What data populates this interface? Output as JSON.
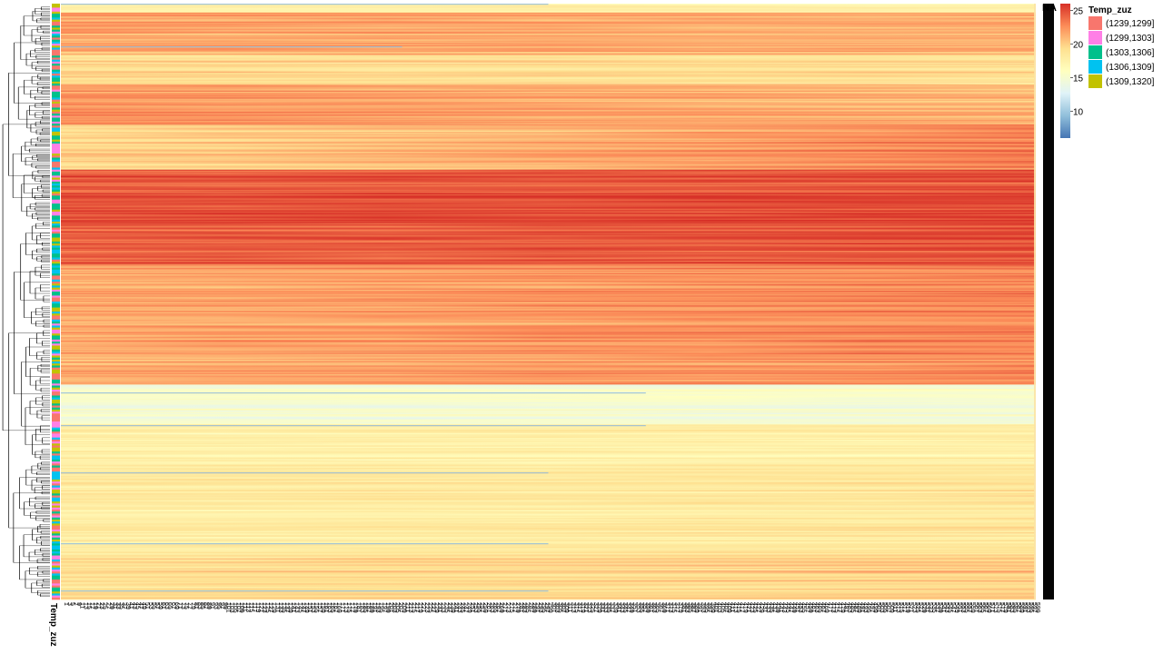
{
  "chart_data": {
    "type": "heatmap",
    "title": "",
    "xlabel": "",
    "ylabel": "",
    "row_annotation": {
      "name": "Temp_zuz",
      "levels": [
        {
          "label": "(1239,1299]",
          "color": "#f8766d"
        },
        {
          "label": "(1299,1303]",
          "color": "#ff7fe6"
        },
        {
          "label": "(1303,1306]",
          "color": "#00c08b"
        },
        {
          "label": "(1306,1309]",
          "color": "#00c2f0"
        },
        {
          "label": "(1309,1320]",
          "color": "#c2c200"
        }
      ]
    },
    "colorbar": {
      "ticks": [
        25,
        20,
        15,
        10
      ],
      "range": [
        6,
        26
      ],
      "na_label": "NA",
      "colors": [
        "#4575b4",
        "#91bfdb",
        "#e0f3f8",
        "#ffffbf",
        "#fee090",
        "#fc8d59",
        "#d73027"
      ]
    },
    "row_blocks": [
      {
        "rows": 9,
        "value_start": 17.0,
        "value_end": 17.0
      },
      {
        "rows": 42,
        "value_start": 21.5,
        "value_end": 21.0
      },
      {
        "rows": 30,
        "value_start": 19.5,
        "value_end": 19.0
      },
      {
        "rows": 40,
        "value_start": 22.5,
        "value_end": 21.0
      },
      {
        "rows": 45,
        "value_start": 19.5,
        "value_end": 23.0
      },
      {
        "rows": 95,
        "value_start": 24.5,
        "value_end": 25.0
      },
      {
        "rows": 120,
        "value_start": 21.5,
        "value_end": 23.0
      },
      {
        "rows": 40,
        "value_start": 15.0,
        "value_end": 15.0
      },
      {
        "rows": 40,
        "value_start": 17.5,
        "value_end": 17.5
      },
      {
        "rows": 90,
        "value_start": 18.0,
        "value_end": 18.5
      },
      {
        "rows": 45,
        "value_start": 19.0,
        "value_end": 20.0
      }
    ],
    "n_columns": 300,
    "column_labels": [
      "1",
      "3",
      "5",
      "7",
      "9",
      "11",
      "13",
      "15",
      "17",
      "19",
      "21",
      "23",
      "25",
      "27",
      "29",
      "31",
      "33",
      "35",
      "37",
      "39",
      "41",
      "43",
      "45",
      "47",
      "49",
      "51",
      "53",
      "55",
      "57",
      "59",
      "61",
      "63",
      "65",
      "67",
      "69",
      "71",
      "73",
      "75",
      "77",
      "79",
      "81",
      "83",
      "85",
      "87",
      "89",
      "91",
      "93",
      "95",
      "97",
      "99",
      "101",
      "103",
      "105",
      "107",
      "109",
      "111",
      "113",
      "115",
      "117",
      "119",
      "121",
      "123",
      "125",
      "127",
      "129",
      "131",
      "133",
      "135",
      "137",
      "139",
      "141",
      "143",
      "145",
      "147",
      "149",
      "151",
      "153",
      "155",
      "157",
      "159",
      "161",
      "163",
      "165",
      "167",
      "169",
      "171",
      "173",
      "175",
      "177",
      "179",
      "181",
      "183",
      "185",
      "187",
      "189",
      "191",
      "193",
      "195",
      "197",
      "199",
      "201",
      "203",
      "205",
      "207",
      "209",
      "211",
      "213",
      "215",
      "217",
      "219",
      "221",
      "223",
      "225",
      "227",
      "229",
      "231",
      "233",
      "235",
      "237",
      "239",
      "241",
      "243",
      "245",
      "247",
      "249",
      "251",
      "253",
      "255",
      "257",
      "259",
      "261",
      "263",
      "265",
      "267",
      "269",
      "271",
      "273",
      "275",
      "277",
      "279",
      "281",
      "283",
      "285",
      "287",
      "289",
      "291",
      "293",
      "295",
      "297",
      "299",
      "301",
      "303",
      "305",
      "307",
      "309",
      "311",
      "313",
      "315",
      "317",
      "319",
      "321",
      "323",
      "325",
      "327",
      "329",
      "331",
      "333",
      "335",
      "337",
      "339",
      "341",
      "343",
      "345",
      "347",
      "349",
      "351",
      "353",
      "355",
      "357",
      "359",
      "361",
      "363",
      "365",
      "367",
      "369",
      "371",
      "373",
      "375",
      "377",
      "379",
      "381",
      "383",
      "385",
      "387",
      "389",
      "391",
      "393",
      "395",
      "397",
      "399",
      "401",
      "403",
      "405",
      "407",
      "409",
      "411",
      "413",
      "415",
      "417",
      "419",
      "421",
      "423",
      "425",
      "427",
      "429",
      "431",
      "433",
      "435",
      "437",
      "439",
      "441",
      "443",
      "445",
      "447",
      "449",
      "451",
      "453",
      "455",
      "457",
      "459",
      "461",
      "463",
      "465",
      "467",
      "469",
      "471",
      "473",
      "475",
      "477",
      "479",
      "481",
      "483",
      "485",
      "487",
      "489",
      "491",
      "493",
      "495",
      "497",
      "499",
      "501",
      "503",
      "505",
      "507",
      "509",
      "511",
      "513",
      "515",
      "517",
      "519",
      "521",
      "523",
      "525",
      "527",
      "529",
      "531",
      "533",
      "535",
      "537",
      "539",
      "541",
      "543",
      "545",
      "547",
      "549",
      "551",
      "553",
      "555",
      "557",
      "559",
      "561",
      "563",
      "565",
      "567",
      "569",
      "571",
      "573",
      "575",
      "577",
      "579",
      "581",
      "583",
      "585",
      "587",
      "589",
      "591",
      "593",
      "595",
      "597",
      "599"
    ]
  }
}
